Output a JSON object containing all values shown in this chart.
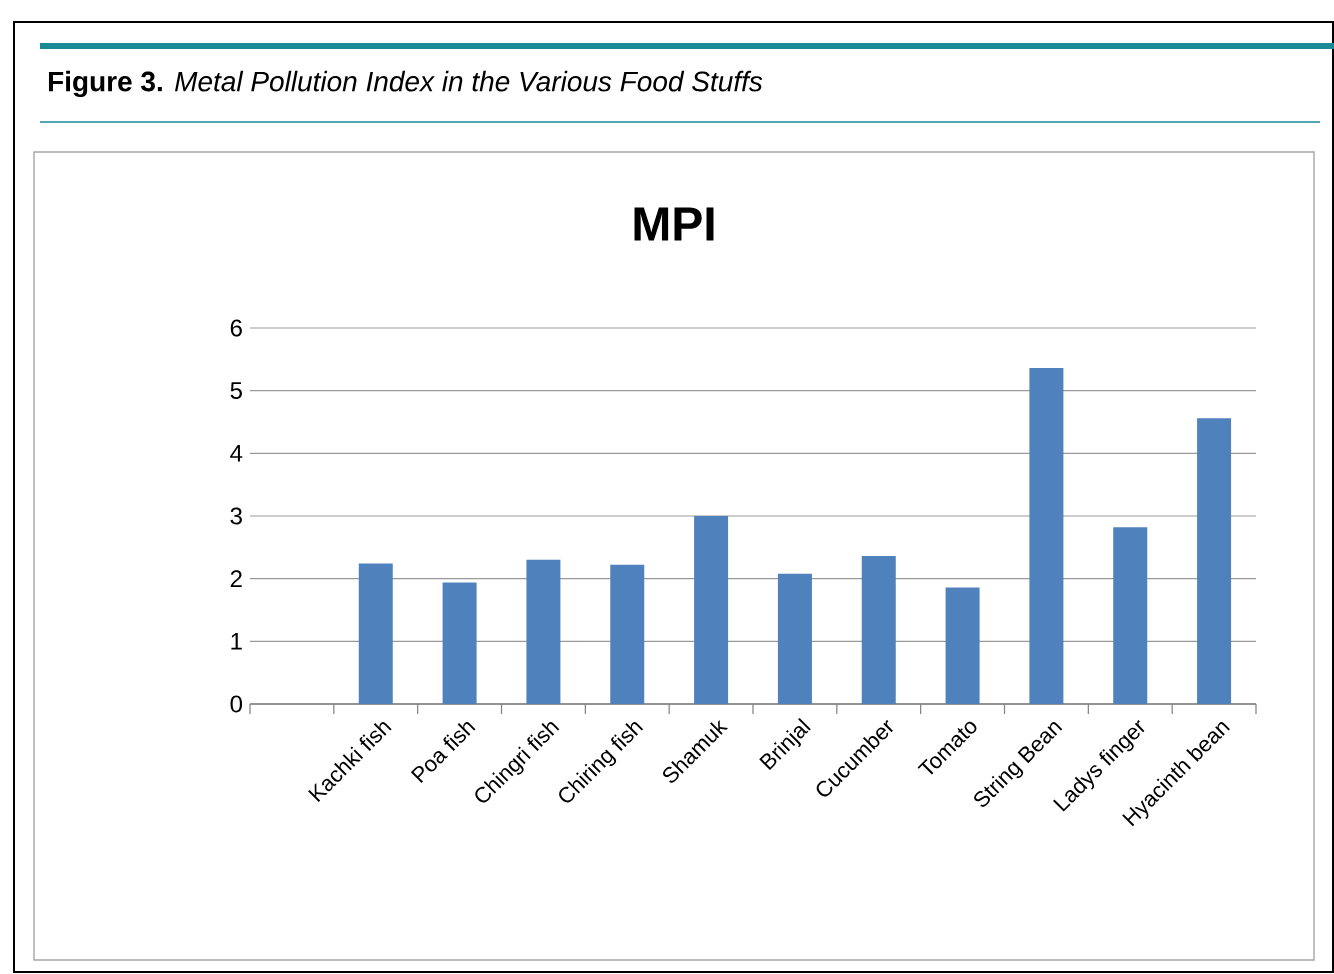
{
  "chart_data": {
    "type": "bar",
    "title": "MPI",
    "annotations": [
      "**Figure 3.** *Metal Pollution Index in the Various Food Stuffs*"
    ],
    "categories": [
      null,
      "Kachki fish",
      "Poa fish",
      "Chingri fish",
      "Chiring fish",
      "Shamuk",
      "Brinjal",
      "Cucumber",
      "Tomato",
      "String Bean",
      "Ladys finger",
      "Hyacinth bean"
    ],
    "values": [
      null,
      2.24,
      1.94,
      2.3,
      2.22,
      3.0,
      2.08,
      2.36,
      1.86,
      5.36,
      2.82,
      4.56
    ],
    "color": "#4f81bd",
    "ylim": [
      0,
      6
    ],
    "yticks": [
      0,
      1,
      2,
      3,
      4,
      5,
      6
    ],
    "grid": "y"
  }
}
